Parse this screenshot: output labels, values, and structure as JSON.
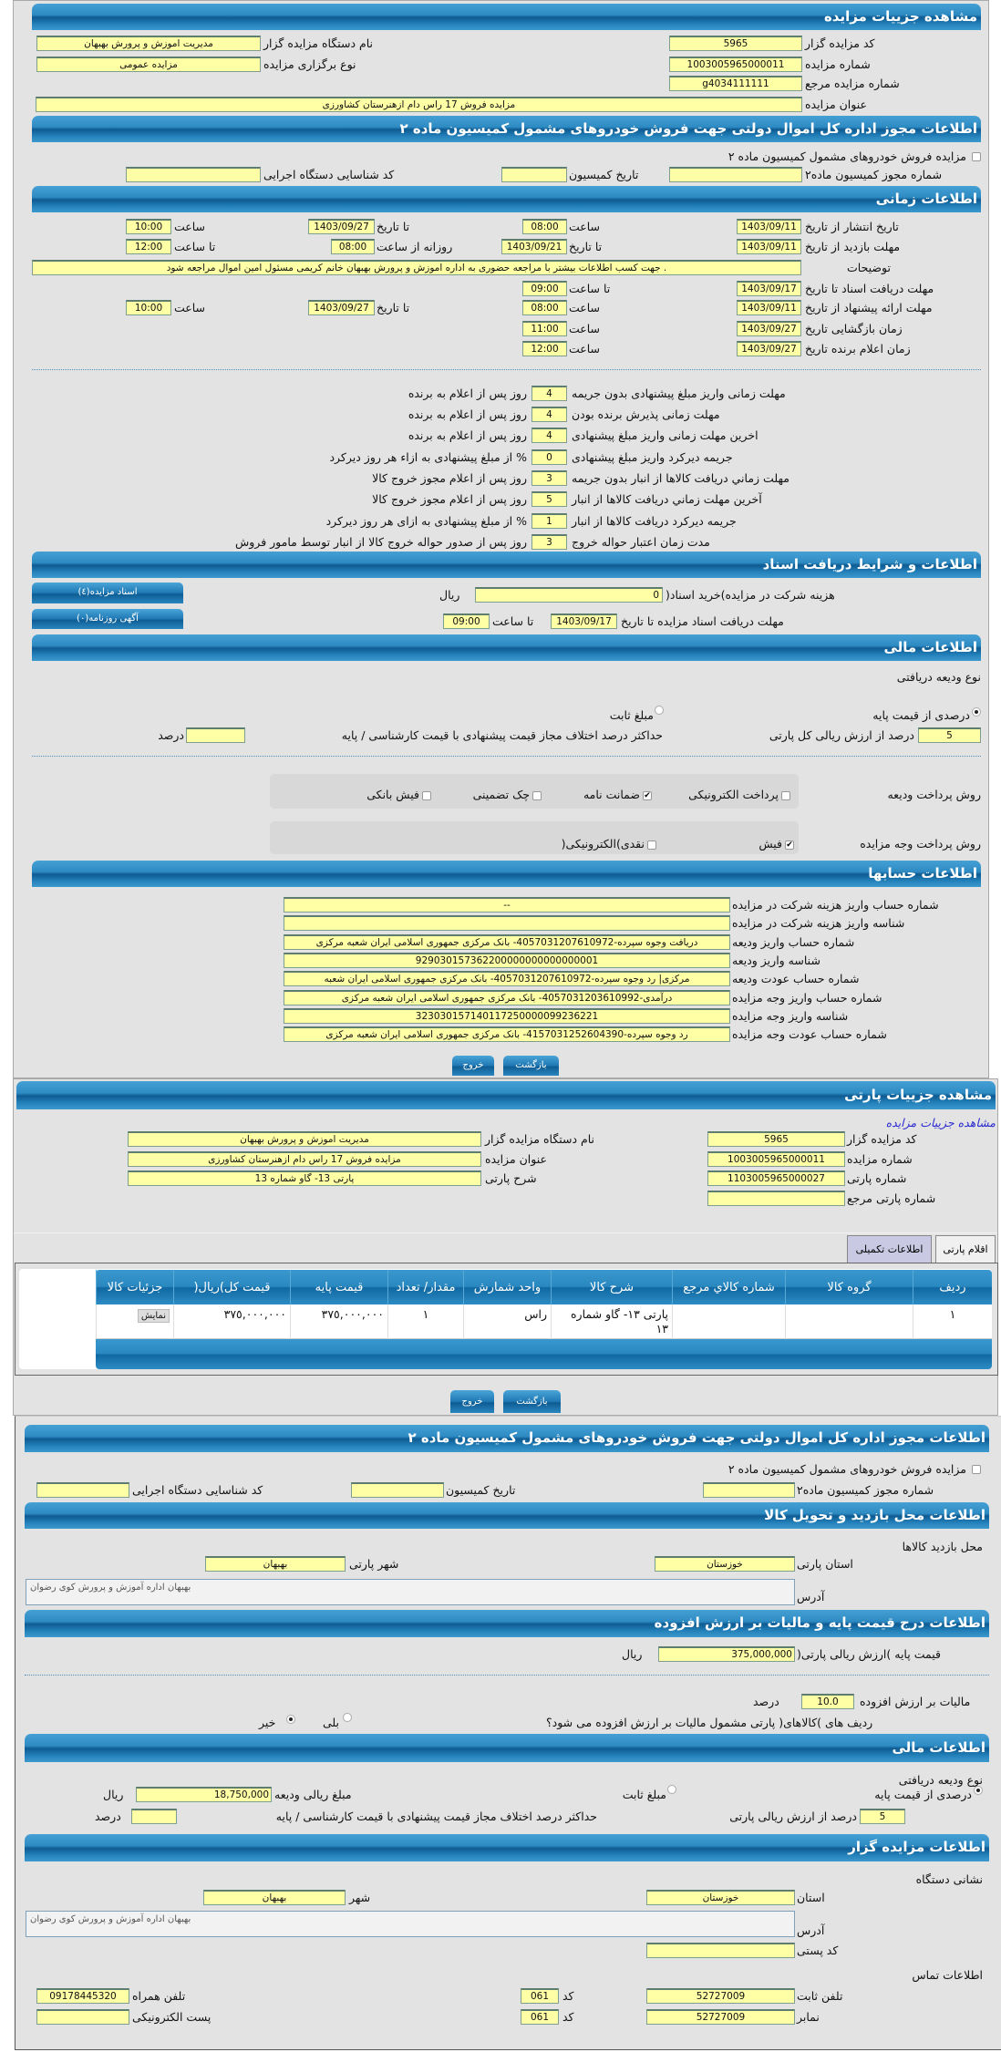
{
  "colors": {
    "header": "#2e8bc3",
    "input": "#ffffa6",
    "panel": "#e3e3e3",
    "link": "#2a2ad0"
  },
  "details": {
    "title": "مشاهده جزییات مزایده",
    "code_label": "کد مزایده گزار",
    "code": "5965",
    "org_label": "نام دستگاه مزایده گزار",
    "org": "مدیریت اموزش و پرورش بهبهان",
    "number_label": "شماره مزایده",
    "number": "1003005965000011",
    "type_label": "نوع برگزاری مزایده",
    "type": "مزایده عمومی",
    "ref_label": "شماره مزایده مرجع",
    "ref": "g4034111111",
    "subject_label": "عنوان مزایده",
    "subject": "مزایده فروش 17 راس دام ازهنرستان کشاورزی"
  },
  "permit": {
    "title": "اطلاعات مجوز اداره کل اموال دولتی جهت فروش خودروهای مشمول کمیسیون ماده ۲",
    "checkbox_label": "مزایده فروش خودروهای مشمول کمیسیون ماده ۲",
    "permit_no_label": "شماره مجوز کمیسیون ماده۲",
    "commission_date_label": "تاریخ کمیسیون",
    "exec_code_label": "کد شناسایی دستگاه اجرایی"
  },
  "time": {
    "title": "اطلاعات زمانی",
    "hour": "ساعت",
    "to_date": "تا تاریخ",
    "to_hour": "تا ساعت",
    "daily_from": "روزانه از ساعت",
    "publish_label": "تاریخ انتشار  از تاریخ",
    "publish_from": "1403/09/11",
    "publish_from_time": "08:00",
    "publish_to": "1403/09/27",
    "publish_to_time": "10:00",
    "visit_label": "مهلت بازدید  از تاریخ",
    "visit_from": "1403/09/11",
    "visit_to": "1403/09/21",
    "visit_from_time": "08:00",
    "visit_to_time": "12:00",
    "desc_label": "توضیحات",
    "desc": ". جهت کسب اطلاعات بیشتر با مراجعه حضوری به اداره اموزش و پرورش بهبهان خانم کریمی مسئول امین اموال مراجعه شود",
    "docs_label": "مهلت دریافت اسناد  تا تاریخ",
    "docs_to": "1403/09/17",
    "docs_time": "09:00",
    "offer_label": "مهلت ارائه پیشنهاد  از تاریخ",
    "offer_from": "1403/09/11",
    "offer_from_time": "08:00",
    "offer_to": "1403/09/27",
    "offer_to_time": "10:00",
    "opening_label": "زمان بازگشایی   تاریخ",
    "opening_date": "1403/09/27",
    "opening_time": "11:00",
    "winner_label": "زمان اعلام برنده   تاریخ",
    "winner_date": "1403/09/27",
    "winner_time": "12:00"
  },
  "penalties": [
    {
      "label": "مهلت زمانی واریز مبلغ پیشنهادی بدون جریمه",
      "value": "4",
      "suffix": "روز پس از اعلام به برنده"
    },
    {
      "label": "مهلت زمانی پذیرش برنده بودن",
      "value": "4",
      "suffix": "روز پس از اعلام به برنده"
    },
    {
      "label": "اخرین مهلت زمانی واریز مبلغ پیشنهادی",
      "value": "4",
      "suffix": "روز پس از اعلام به برنده"
    },
    {
      "label": "جریمه دیرکرد واریز مبلغ پیشنهادی",
      "value": "0",
      "suffix": "% از مبلغ پیشنهادی به ازاء هر روز دیرکرد"
    },
    {
      "label": "مهلت زماني دريافت كالاها از انبار بدون جريمه",
      "value": "3",
      "suffix": "روز پس از اعلام مجوز خروج کالا"
    },
    {
      "label": "آخرين مهلت زماني دريافت كالاها از انبار",
      "value": "5",
      "suffix": "روز پس از اعلام مجوز خروج کالا"
    },
    {
      "label": "جریمه دیرکرد دریافت کالاها از انبار",
      "value": "1",
      "suffix": "% از مبلغ پیشنهادی به ازای هر روز دیرکرد"
    },
    {
      "label": "مدت زمان اعتبار حواله خروج",
      "value": "3",
      "suffix": "روز پس از صدور حواله خروج کالا از انبار توسط مامور فروش"
    }
  ],
  "docs": {
    "title": "اطلاعات و شرایط دریافت اسناد",
    "fee_label": "هزینه شرکت در مزایده)خرید اسناد(",
    "fee": "0",
    "rial": "ریال",
    "deadline_label": "مهلت دریافت اسناد مزایده تا تاریخ",
    "deadline_date": "1403/09/17",
    "to_hour": "تا ساعت",
    "deadline_time": "09:00",
    "docs_button": "اسناد مزایده(٤)",
    "ads_button": "آگهی روزنامه(۰)"
  },
  "finance": {
    "title": "اطلاعات مالی",
    "deposit_type_label": "نوع ودیعه دریافتی",
    "percent_option": "درصدی از قیمت پایه",
    "fixed_option": "مبلغ ثابت",
    "selected_option": "درصدی از قیمت پایه",
    "percent_value": "5",
    "percent_suffix": "درصد از ارزش ریالی کل پارتی",
    "max_diff_label": "حداکثر درصد اختلاف مجاز قیمت پیشنهادی با قیمت کارشناسی / پایه",
    "max_diff_value": "",
    "percent_word": "درصد",
    "deposit_method_label": "روش پرداخت ودیعه",
    "deposit_methods": [
      {
        "label": "پرداخت الکترونیکی",
        "checked": false
      },
      {
        "label": "ضمانت نامه",
        "checked": true
      },
      {
        "label": "چک تضمینی",
        "checked": false
      },
      {
        "label": "فیش بانکی",
        "checked": false
      }
    ],
    "payment_method_label": "روش پرداخت وجه مزایده",
    "payment_methods": [
      {
        "label": "فیش",
        "checked": true
      },
      {
        "label": "نقدی)الکترونیکی(",
        "checked": false
      }
    ]
  },
  "accounts": {
    "title": "اطلاعات حسابها",
    "rows": [
      {
        "label": "شماره حساب واریز هزینه شرکت در مزایده",
        "value": "--"
      },
      {
        "label": "شناسه واریز هزینه شرکت در مزایده",
        "value": ""
      },
      {
        "label": "شماره حساب واریز ودیعه",
        "value": "دریافت وجوه سپرده-4057031207610972- بانک مرکزی جمهوری اسلامی ایران شعبه مرکزی"
      },
      {
        "label": "شناسه واریز ودیعه",
        "value": "929030157362200000000000000001"
      },
      {
        "label": "شماره حساب عودت ودیعه",
        "value": "مرکزی| رد وجوه سپرده-4057031207610972- بانک مرکزی جمهوری اسلامی ایران شعبه"
      },
      {
        "label": "شماره حساب واریز وجه مزایده",
        "value": "درآمدی-4057031203610992- بانک مرکزی جمهوری اسلامی ایران شعبه مرکزی"
      },
      {
        "label": "شناسه واریز وجه مزایده",
        "value": "323030157140117250000099236221"
      },
      {
        "label": "شماره حساب عودت وجه مزایده",
        "value": "رد وجوه سپرده-4157031252604390- بانک مرکزی جمهوری اسلامی ایران شعبه مرکزی"
      }
    ]
  },
  "buttons": {
    "back": "بازگشت",
    "exit": "خروج"
  },
  "party": {
    "title": "مشاهده جزییات پارتی",
    "link": "مشاهده جزییات مزایده",
    "party_no_label": "شماره پارتی",
    "party_no": "1103005965000027",
    "party_desc_label": "شرح پارتی",
    "party_desc": "پارتی 13- گاو شماره 13",
    "party_ref_label": "شماره پارتی مرجع",
    "party_ref": "",
    "tabs": [
      "اقلام پارتی",
      "اطلاعات تکمیلی"
    ],
    "table": {
      "columns": [
        "ردیف",
        "گروه کالا",
        "شماره کالاي مرجع",
        "شرح کالا",
        "واحد شمارش",
        "مقدار/ تعداد",
        "قیمت پایه",
        "قیمت کل)ریال(",
        "جزئیات کالا"
      ],
      "rows": [
        [
          "١",
          "",
          "",
          "پارتی ١٣- گاو شماره ١٣",
          "راس",
          "١",
          "٣٧٥,٠٠٠,٠٠٠",
          "٣٧٥,٠٠٠,٠٠٠",
          "نمایش"
        ]
      ]
    }
  },
  "location": {
    "title": "اطلاعات محل بازدید و تحویل کالا",
    "visit_place_label": "محل بازدید کالاها",
    "province_label": "استان پارتی",
    "province": "خوزستان",
    "city_label": "شهر پارتی",
    "city": "بهبهان",
    "address_label": "آدرس",
    "address": "بهبهان اداره آموزش و پرورش کوی رضوان"
  },
  "price": {
    "title": "اطلاعات درج قیمت پایه و مالیات بر ارزش افزوده",
    "base_label": "قیمت پایه )ارزش ریالی پارتی(",
    "base": "375,000,000",
    "rial": "ریال",
    "vat_label": "مالیات بر ارزش افزوده",
    "vat": "10.0",
    "percent": "درصد",
    "vat_question": "ردیف های )کالاهای( پارتی مشمول مالیات بر ارزش افزوده می شود؟",
    "yes": "بلی",
    "no": "خیر",
    "vat_applies": "خیر"
  },
  "finance2": {
    "title": "اطلاعات مالی",
    "deposit_type_label": "نوع ودیعه دریافتی",
    "percent_option": "درصدی از قیمت پایه",
    "fixed_option": "مبلغ ثابت",
    "deposit_amount_label": "مبلغ ریالی ودیعه",
    "deposit_amount": "18,750,000",
    "rial": "ریال",
    "percent_value": "5",
    "percent_suffix": "درصد از ارزش ریالی پارتی",
    "max_diff_label": "حداکثر درصد اختلاف مجاز قیمت پیشنهادی با قیمت کارشناسی / پایه",
    "max_diff_value": "",
    "percent_word": "درصد"
  },
  "auctioneer": {
    "title": "اطلاعات مزایده گزار",
    "address_section": "نشانی دستگاه",
    "province_label": "استان",
    "province": "خوزستان",
    "city_label": "شهر",
    "city": "بهبهان",
    "address_label": "آدرس",
    "address": "بهبهان اداره آموزش و پرورش کوی رضوان",
    "postal_label": "کد پستی",
    "postal": "",
    "contact_section": "اطلاعات تماس",
    "phone_label": "تلفن ثابت",
    "phone": "52727009",
    "code_label": "کد",
    "phone_code": "061",
    "mobile_label": "تلفن همراه",
    "mobile": "09178445320",
    "fax_label": "نمابر",
    "fax": "52727009",
    "fax_code": "061",
    "email_label": "پست الکترونیکی",
    "email": ""
  }
}
